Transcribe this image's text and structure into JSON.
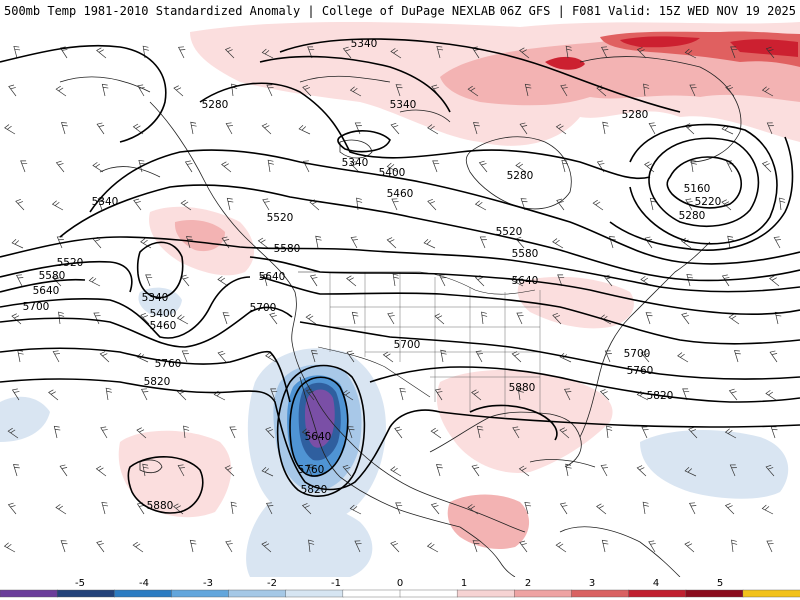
{
  "header": {
    "title_left": "500mb Temp 1981-2010 Standardized Anomaly | College of DuPage NEXLAB",
    "title_right": "06Z GFS | F081 Valid: 15Z WED NOV 19 2025"
  },
  "contour_labels": [
    {
      "id": "c5340-a",
      "text": "5340"
    },
    {
      "id": "c5340-b",
      "text": "5340"
    },
    {
      "id": "c5280-a",
      "text": "5280"
    },
    {
      "id": "c5280-b",
      "text": "5280"
    },
    {
      "id": "c5280-c",
      "text": "5280"
    },
    {
      "id": "c5280-d",
      "text": "5280"
    },
    {
      "id": "c5340-c",
      "text": "5340"
    },
    {
      "id": "c5340-d",
      "text": "5340"
    },
    {
      "id": "c5400-a",
      "text": "5400"
    },
    {
      "id": "c5460-a",
      "text": "5460"
    },
    {
      "id": "c5160",
      "text": "5160"
    },
    {
      "id": "c5220",
      "text": "5220"
    },
    {
      "id": "c5520-a",
      "text": "5520"
    },
    {
      "id": "c5520-b",
      "text": "5520"
    },
    {
      "id": "c5520-c",
      "text": "5520"
    },
    {
      "id": "c5580-a",
      "text": "5580"
    },
    {
      "id": "c5580-b",
      "text": "5580"
    },
    {
      "id": "c5580-c",
      "text": "5580"
    },
    {
      "id": "c5640-a",
      "text": "5640"
    },
    {
      "id": "c5640-b",
      "text": "5640"
    },
    {
      "id": "c5640-c",
      "text": "5640"
    },
    {
      "id": "c5640-d",
      "text": "5640"
    },
    {
      "id": "c5340-e",
      "text": "5340"
    },
    {
      "id": "c5400-b",
      "text": "5400"
    },
    {
      "id": "c5460-b",
      "text": "5460"
    },
    {
      "id": "c5700-a",
      "text": "5700"
    },
    {
      "id": "c5700-b",
      "text": "5700"
    },
    {
      "id": "c5700-c",
      "text": "5700"
    },
    {
      "id": "c5700-d",
      "text": "5700"
    },
    {
      "id": "c5760-a",
      "text": "5760"
    },
    {
      "id": "c5760-b",
      "text": "5760"
    },
    {
      "id": "c5760-c",
      "text": "5760"
    },
    {
      "id": "c5820-a",
      "text": "5820"
    },
    {
      "id": "c5820-b",
      "text": "5820"
    },
    {
      "id": "c5820-c",
      "text": "5820"
    },
    {
      "id": "c5880-a",
      "text": "5880"
    },
    {
      "id": "c5880-b",
      "text": "5880"
    }
  ],
  "legend": {
    "ticks": [
      "-5",
      "-4",
      "-3",
      "-2",
      "-1",
      "0",
      "1",
      "2",
      "3",
      "4",
      "5"
    ],
    "colors": [
      "#6a3d9a",
      "#22427a",
      "#2b7cc2",
      "#62a6dc",
      "#a5c8e6",
      "#d6e5f2",
      "#ffffff",
      "#ffffff",
      "#f6d3d3",
      "#eea3a3",
      "#d96262",
      "#c02030",
      "#8a0c1e",
      "#f2c21a"
    ]
  },
  "colors": {
    "anom_neg1": "#d9e5f2",
    "anom_neg2": "#a8c8e8",
    "anom_neg3": "#4f94d4",
    "anom_neg4": "#2f5f9f",
    "anom_neg5": "#7a4fa6",
    "anom_pos1": "#fbdede",
    "anom_pos2": "#f3b3b3",
    "anom_pos3": "#e06060",
    "anom_pos4": "#cc2030"
  }
}
